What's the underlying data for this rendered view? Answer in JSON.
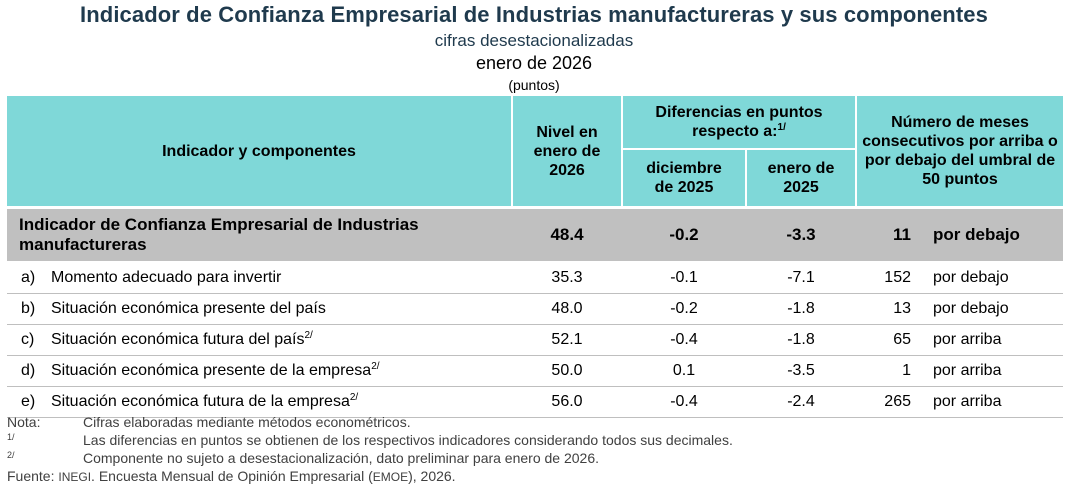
{
  "header": {
    "title": "Indicador de Confianza Empresarial de Industrias manufactureras y sus componentes",
    "subtitle": "cifras desestacionalizadas",
    "period": "enero de 2026",
    "units": "(puntos)"
  },
  "columns": {
    "indicator": "Indicador y componentes",
    "level": "Nivel en enero de 2026",
    "diff_group": "Diferencias en puntos respecto a:",
    "diff_group_note": "1/",
    "diff_dec": "diciembre de 2025",
    "diff_jan": "enero de 2025",
    "months": "Número de meses consecutivos por arriba o por debajo del umbral de 50 puntos"
  },
  "main_row": {
    "name": "Indicador de Confianza Empresarial de Industrias manufactureras",
    "level": "48.4",
    "diff_dec": "-0.2",
    "diff_jan": "-3.3",
    "months": "11",
    "direction": "por debajo"
  },
  "rows": [
    {
      "letter": "a)",
      "name": "Momento adecuado para invertir",
      "note": "",
      "level": "35.3",
      "diff_dec": "-0.1",
      "diff_jan": "-7.1",
      "months": "152",
      "direction": "por debajo"
    },
    {
      "letter": "b)",
      "name": "Situación económica presente del país",
      "note": "",
      "level": "48.0",
      "diff_dec": "-0.2",
      "diff_jan": "-1.8",
      "months": "13",
      "direction": "por debajo"
    },
    {
      "letter": "c)",
      "name": "Situación económica futura del país",
      "note": "2/",
      "level": "52.1",
      "diff_dec": "-0.4",
      "diff_jan": "-1.8",
      "months": "65",
      "direction": "por arriba"
    },
    {
      "letter": "d)",
      "name": "Situación económica presente de la empresa",
      "note": "2/",
      "level": "50.0",
      "diff_dec": "0.1",
      "diff_jan": "-3.5",
      "months": "1",
      "direction": "por arriba"
    },
    {
      "letter": "e)",
      "name": "Situación económica futura de la empresa",
      "note": "2/",
      "level": "56.0",
      "diff_dec": "-0.4",
      "diff_jan": "-2.4",
      "months": "265",
      "direction": "por arriba"
    }
  ],
  "notes": {
    "nota_label": "Nota:",
    "nota_text": "Cifras elaboradas mediante métodos econométricos.",
    "n1_label": "1/",
    "n1_text": "Las diferencias en puntos se obtienen de los respectivos indicadores considerando todos sus decimales.",
    "n2_label": "2/",
    "n2_text": "Componente no sujeto a desestacionalización, dato preliminar para enero de 2026.",
    "source_label": "Fuente:",
    "source_org": "INEGI",
    "source_text_a": ". Encuesta Mensual de Opinión Empresarial (",
    "source_acronym": "EMOE",
    "source_text_b": "), 2026."
  }
}
